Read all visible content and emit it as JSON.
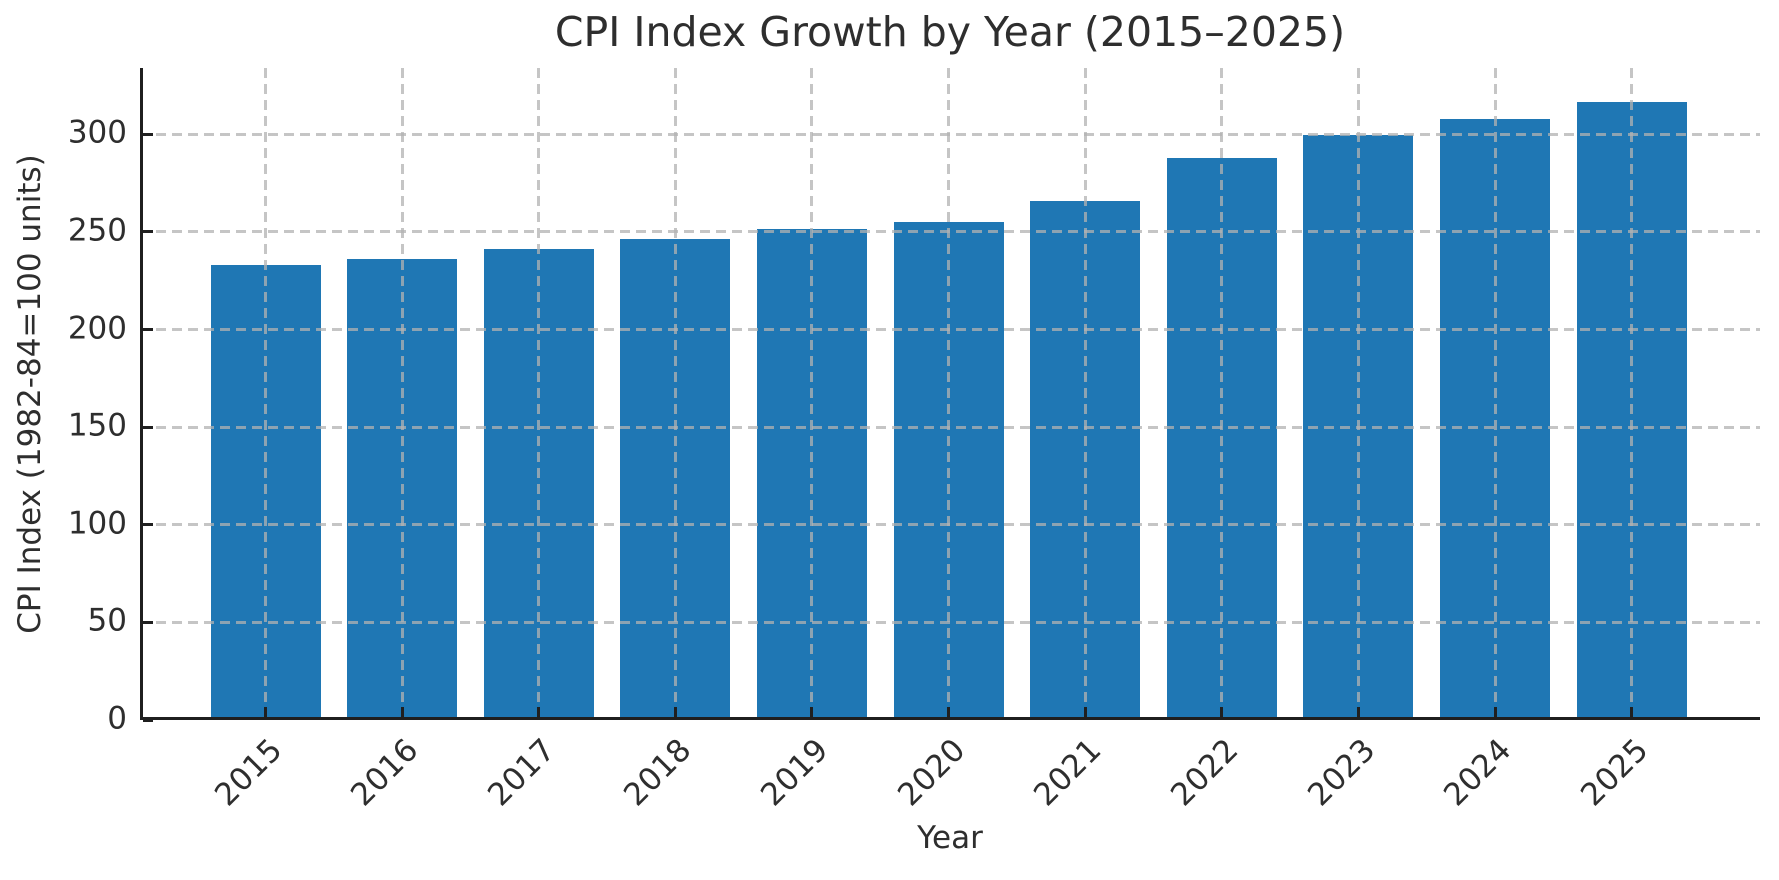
{
  "chart_data": {
    "type": "bar",
    "title": "CPI Index Growth by Year (2015–2025)",
    "xlabel": "Year",
    "ylabel": "CPI Index (1982-84=100 units)",
    "categories": [
      "2015",
      "2016",
      "2017",
      "2018",
      "2019",
      "2020",
      "2021",
      "2022",
      "2023",
      "2024",
      "2025"
    ],
    "values": [
      233,
      236,
      241.5,
      246.5,
      251.5,
      255,
      266,
      288,
      299.5,
      308,
      316.5
    ],
    "yticks": [
      0,
      50,
      100,
      150,
      200,
      250,
      300
    ],
    "ylim": [
      0,
      334
    ],
    "grid": true,
    "grid_linestyle": "dashed",
    "grid_on_top_of_bars": true,
    "tick_direction": "in",
    "legend_position": "none",
    "colors": {
      "bar": "#1f77b4",
      "grid": "#b2b2b2",
      "axis": "#1f1f1f",
      "text": "#2e2e2e",
      "background": "#ffffff"
    }
  }
}
